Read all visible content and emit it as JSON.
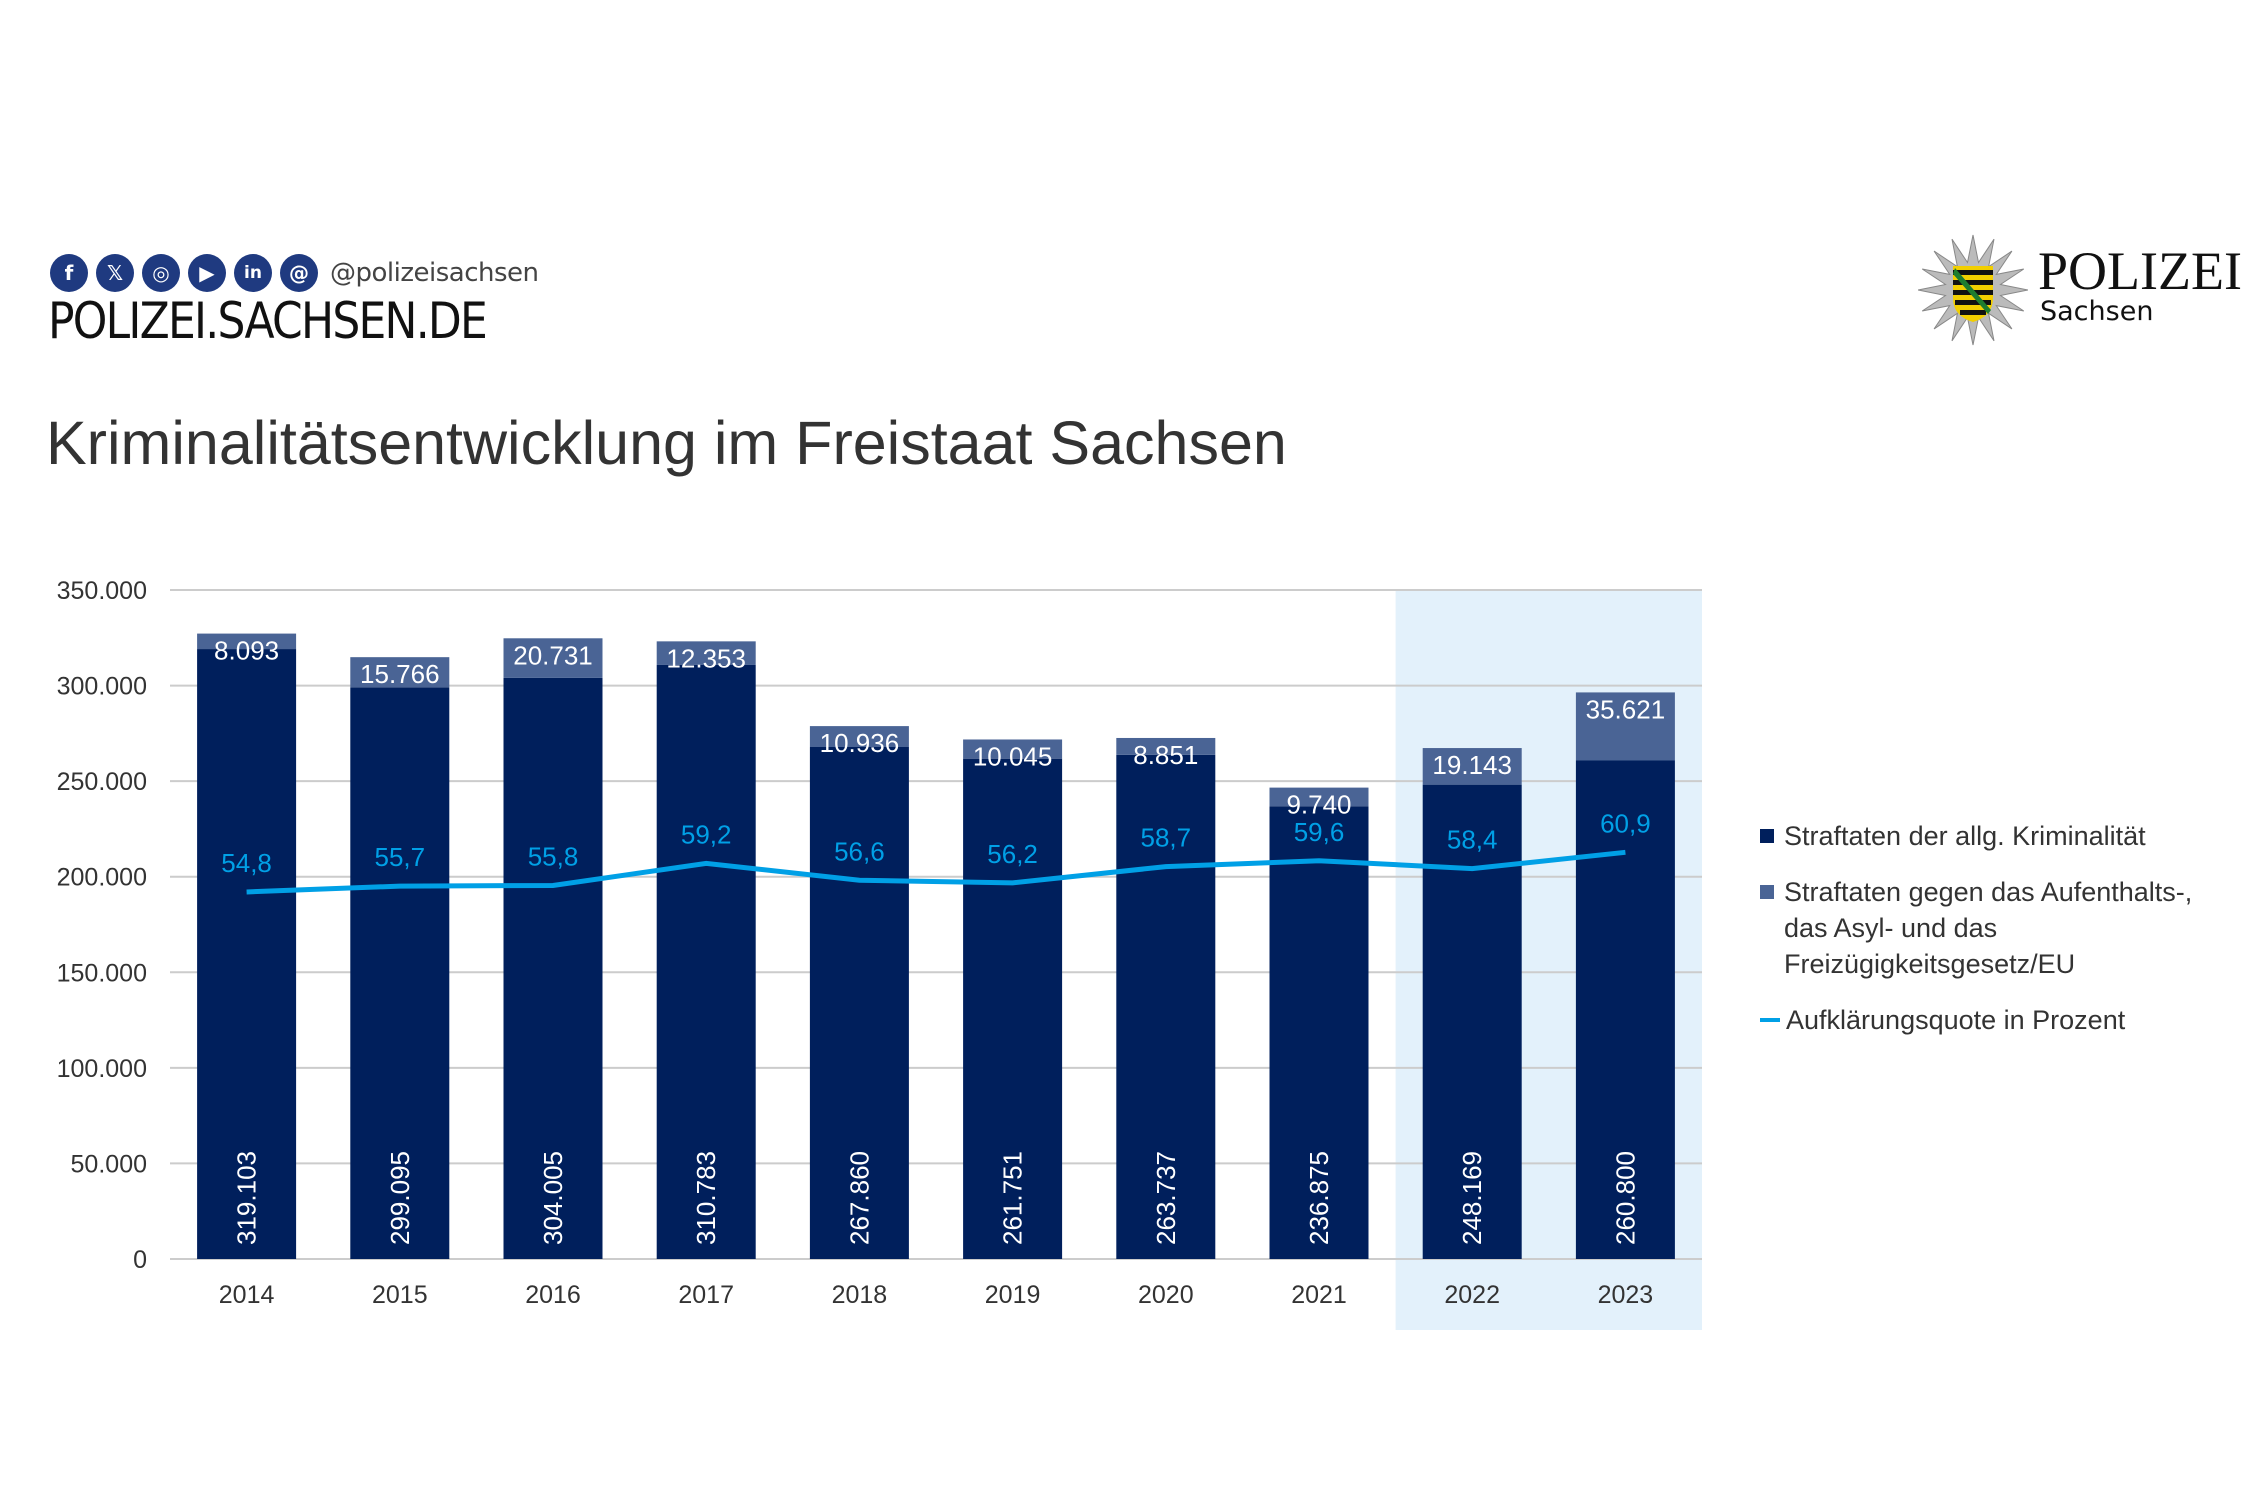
{
  "header": {
    "social_icons": [
      "facebook-icon",
      "x-icon",
      "instagram-icon",
      "youtube-icon",
      "linkedin-icon",
      "threads-icon"
    ],
    "handle": "@polizeisachsen",
    "site": "POLIZEI.SACHSEN.DE",
    "logo": {
      "title": "POLIZEI",
      "subtitle": "Sachsen"
    }
  },
  "colors": {
    "primary": "#001f5c",
    "secondary": "#4a6495",
    "line": "#00a0e6",
    "highlight": "#e3f1fb"
  },
  "chart_data": {
    "type": "bar",
    "stacked": true,
    "title": "Kriminalitätsentwicklung im Freistaat Sachsen",
    "categories": [
      "2014",
      "2015",
      "2016",
      "2017",
      "2018",
      "2019",
      "2020",
      "2021",
      "2022",
      "2023"
    ],
    "ylim": [
      0,
      350000
    ],
    "yticks": [
      "0",
      "50.000",
      "100.000",
      "150.000",
      "200.000",
      "250.000",
      "300.000",
      "350.000"
    ],
    "grid": true,
    "legend_position": "right",
    "highlighted_categories": [
      "2022",
      "2023"
    ],
    "series": [
      {
        "name": "Straftaten der allg. Kriminalität",
        "type": "bar",
        "values": [
          319103,
          299095,
          304005,
          310783,
          267860,
          261751,
          263737,
          236875,
          248169,
          260800
        ],
        "labels": [
          "319.103",
          "299.095",
          "304.005",
          "310.783",
          "267.860",
          "261.751",
          "263.737",
          "236.875",
          "248.169",
          "260.800"
        ]
      },
      {
        "name": "Straftaten gegen das Aufenthalts-, das Asyl- und das Freizügigkeitsgesetz/EU",
        "name_lines": [
          "Straftaten gegen das Aufenthalts-,",
          "das Asyl- und das",
          "Freizügigkeitsgesetz/EU"
        ],
        "type": "bar",
        "values": [
          8093,
          15766,
          20731,
          12353,
          10936,
          10045,
          8851,
          9740,
          19143,
          35621
        ],
        "labels": [
          "8.093",
          "15.766",
          "20.731",
          "12.353",
          "10.936",
          "10.045",
          "8.851",
          "9.740",
          "19.143",
          "35.621"
        ]
      },
      {
        "name": "Aufklärungsquote in Prozent",
        "type": "line",
        "unit": "%",
        "values": [
          54.8,
          55.7,
          55.8,
          59.2,
          56.6,
          56.2,
          58.7,
          59.6,
          58.4,
          60.9
        ],
        "labels": [
          "54,8",
          "55,7",
          "55,8",
          "59,2",
          "56,6",
          "56,2",
          "58,7",
          "59,6",
          "58,4",
          "60,9"
        ]
      }
    ]
  }
}
